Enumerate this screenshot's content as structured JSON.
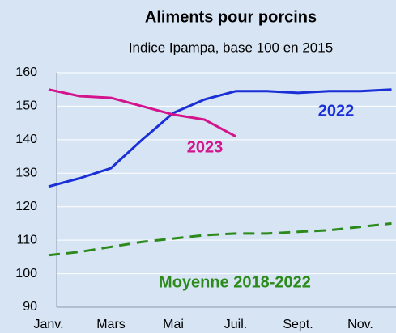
{
  "chart_data": {
    "type": "line",
    "title": "Aliments pour porcins",
    "subtitle": "Indice Ipampa, base 100 en 2015",
    "categories": [
      "Janv.",
      null,
      "Mars",
      null,
      "Mai",
      null,
      "Juil.",
      null,
      "Sept.",
      null,
      "Nov.",
      null
    ],
    "series": [
      {
        "name": "2022",
        "color": "#1a2fd6",
        "line_style": "solid",
        "values": [
          126,
          128.5,
          131.5,
          140,
          148,
          152,
          154.5,
          154.5,
          154,
          154.5,
          154.5,
          155
        ]
      },
      {
        "name": "2023",
        "color": "#d4148c",
        "line_style": "solid",
        "values": [
          155,
          153,
          152.5,
          150,
          147.5,
          146,
          141,
          null,
          null,
          null,
          null,
          null
        ]
      },
      {
        "name": "Moyenne 2018-2022",
        "color": "#2b8a1a",
        "line_style": "dashed",
        "values": [
          105.5,
          106.5,
          108,
          109.5,
          110.5,
          111.5,
          112,
          112,
          112.5,
          113,
          114,
          115
        ]
      }
    ],
    "ylim": [
      90,
      160
    ],
    "yticks": [
      90,
      100,
      110,
      120,
      130,
      140,
      150,
      160
    ],
    "grid": true
  }
}
